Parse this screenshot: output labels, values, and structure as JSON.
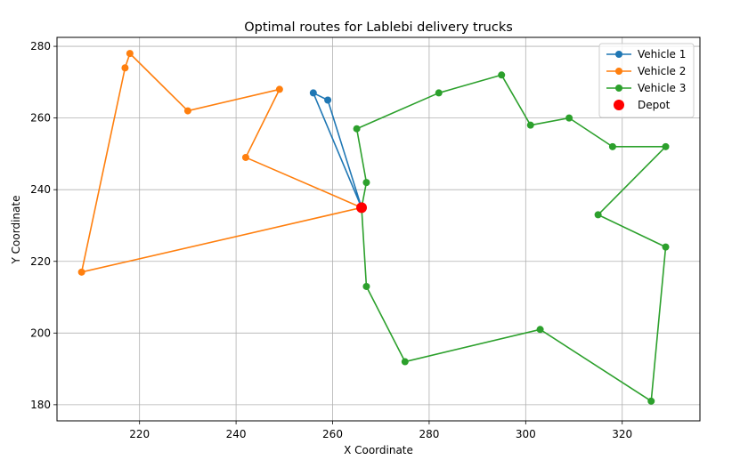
{
  "chart_data": {
    "type": "line",
    "title": "Optimal routes for Lablebi delivery trucks",
    "xlabel": "X Coordinate",
    "ylabel": "Y Coordinate",
    "xlim": [
      202.9,
      336.1
    ],
    "ylim": [
      175.5,
      282.5
    ],
    "xticks": [
      220,
      240,
      260,
      280,
      300,
      320
    ],
    "yticks": [
      180,
      200,
      220,
      240,
      260,
      280
    ],
    "grid": true,
    "legend_position": "top-right",
    "series": [
      {
        "name": "Vehicle 1",
        "color": "#1f77b4",
        "points": [
          [
            266,
            235
          ],
          [
            259,
            265
          ],
          [
            256,
            267
          ],
          [
            266,
            235
          ]
        ]
      },
      {
        "name": "Vehicle 2",
        "color": "#ff7f0e",
        "points": [
          [
            266,
            235
          ],
          [
            242,
            249
          ],
          [
            249,
            268
          ],
          [
            230,
            262
          ],
          [
            218,
            278
          ],
          [
            217,
            274
          ],
          [
            208,
            217
          ],
          [
            266,
            235
          ]
        ]
      },
      {
        "name": "Vehicle 3",
        "color": "#2ca02c",
        "points": [
          [
            266,
            235
          ],
          [
            267,
            213
          ],
          [
            275,
            192
          ],
          [
            303,
            201
          ],
          [
            326,
            181
          ],
          [
            329,
            224
          ],
          [
            315,
            233
          ],
          [
            329,
            252
          ],
          [
            318,
            252
          ],
          [
            309,
            260
          ],
          [
            301,
            258
          ],
          [
            295,
            272
          ],
          [
            282,
            267
          ],
          [
            265,
            257
          ],
          [
            267,
            242
          ],
          [
            266,
            235
          ]
        ]
      }
    ],
    "depot": {
      "name": "Depot",
      "color": "#ff0000",
      "point": [
        266,
        235
      ]
    }
  }
}
